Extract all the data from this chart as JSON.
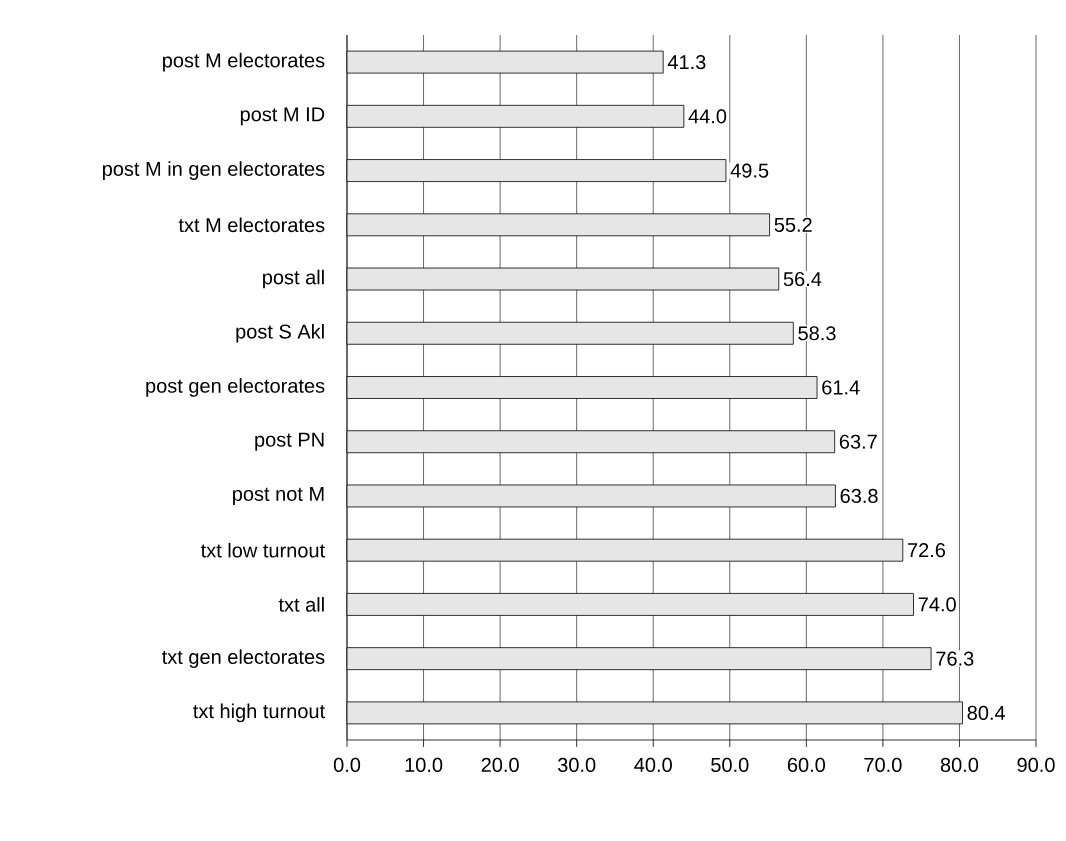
{
  "chart_data": {
    "type": "bar",
    "orientation": "horizontal",
    "categories": [
      "post M electorates",
      "post M ID",
      "post M in gen electorates",
      "txt M electorates",
      "post all",
      "post S Akl",
      "post gen electorates",
      "post PN",
      "post not M",
      "txt low turnout",
      "txt all",
      "txt gen electorates",
      "txt high turnout"
    ],
    "values": [
      41.3,
      44.0,
      49.5,
      55.2,
      56.4,
      58.3,
      61.4,
      63.7,
      63.8,
      72.6,
      74.0,
      76.3,
      80.4
    ],
    "value_labels": [
      "41.3",
      "44.0",
      "49.5",
      "55.2",
      "56.4",
      "58.3",
      "61.4",
      "63.7",
      "63.8",
      "72.6",
      "74.0",
      "76.3",
      "80.4"
    ],
    "color": "#e6e6e6",
    "xlim": [
      0,
      90
    ],
    "xticks": [
      {
        "value": 0,
        "label": "0.0"
      },
      {
        "value": 10,
        "label": "10.0"
      },
      {
        "value": 20,
        "label": "20.0"
      },
      {
        "value": 30,
        "label": "30.0"
      },
      {
        "value": 40,
        "label": "40.0"
      },
      {
        "value": 50,
        "label": "50.0"
      },
      {
        "value": 60,
        "label": "60.0"
      },
      {
        "value": 70,
        "label": "70.0"
      },
      {
        "value": 80,
        "label": "80.0"
      },
      {
        "value": 90,
        "label": "90.0"
      }
    ],
    "grid": "x"
  }
}
